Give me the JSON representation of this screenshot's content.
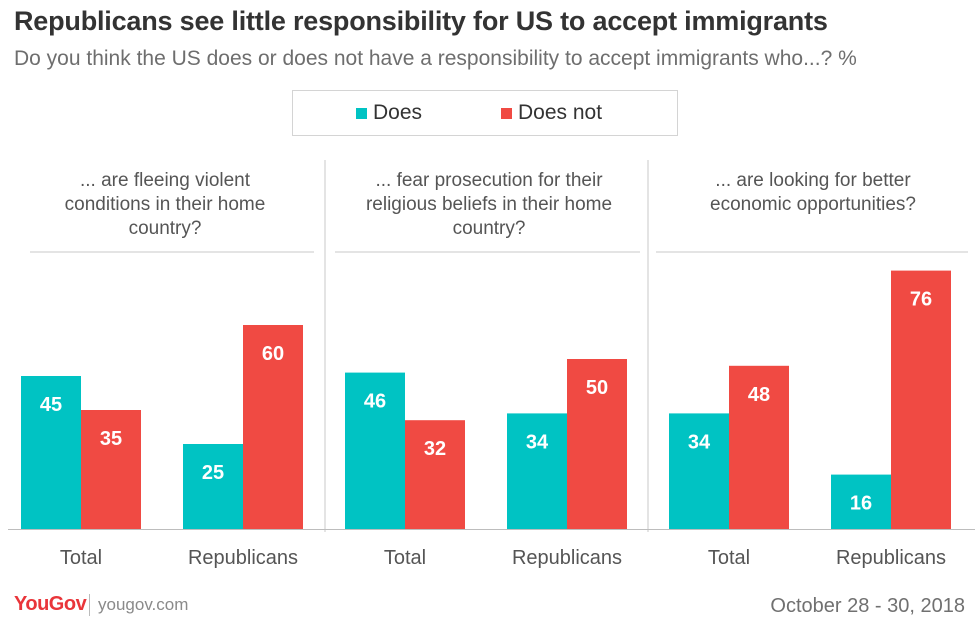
{
  "colors": {
    "does": "#00c3c3",
    "does_not": "#f04a43"
  },
  "footer": {
    "logo": "YouGov",
    "site": "yougov.com",
    "date": "October 28 - 30, 2018"
  },
  "chart_data": {
    "type": "bar",
    "title": "Republicans see little responsibility for US to accept immigrants",
    "subtitle": "Do you think the US does or does not have a responsibility to accept immigrants who...? %",
    "legend": {
      "placement": "top-center",
      "entries": [
        "Does",
        "Does not"
      ]
    },
    "series_names": [
      "Does",
      "Does not"
    ],
    "ylim": [
      0,
      80
    ],
    "grid": false,
    "panels": [
      {
        "title_lines": [
          "... are fleeing violent",
          "conditions in their home",
          "country?"
        ],
        "categories": [
          "Total",
          "Republicans"
        ],
        "series": [
          {
            "name": "Does",
            "values": [
              45,
              25
            ]
          },
          {
            "name": "Does not",
            "values": [
              35,
              60
            ]
          }
        ]
      },
      {
        "title_lines": [
          "... fear prosecution for their",
          "religious beliefs in their home",
          "country?"
        ],
        "categories": [
          "Total",
          "Republicans"
        ],
        "series": [
          {
            "name": "Does",
            "values": [
              46,
              34
            ]
          },
          {
            "name": "Does not",
            "values": [
              32,
              50
            ]
          }
        ]
      },
      {
        "title_lines": [
          "... are looking for better",
          "economic opportunities?"
        ],
        "categories": [
          "Total",
          "Republicans"
        ],
        "series": [
          {
            "name": "Does",
            "values": [
              34,
              16
            ]
          },
          {
            "name": "Does not",
            "values": [
              48,
              76
            ]
          }
        ]
      }
    ]
  }
}
